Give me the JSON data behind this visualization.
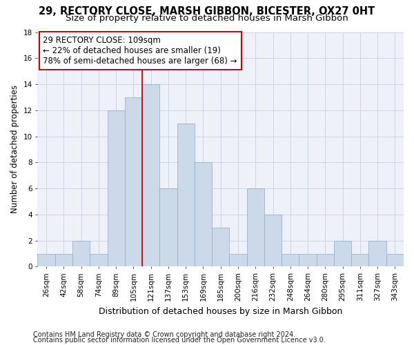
{
  "title1": "29, RECTORY CLOSE, MARSH GIBBON, BICESTER, OX27 0HT",
  "title2": "Size of property relative to detached houses in Marsh Gibbon",
  "xlabel": "Distribution of detached houses by size in Marsh Gibbon",
  "ylabel": "Number of detached properties",
  "categories": [
    "26sqm",
    "42sqm",
    "58sqm",
    "74sqm",
    "89sqm",
    "105sqm",
    "121sqm",
    "137sqm",
    "153sqm",
    "169sqm",
    "185sqm",
    "200sqm",
    "216sqm",
    "232sqm",
    "248sqm",
    "264sqm",
    "280sqm",
    "295sqm",
    "311sqm",
    "327sqm",
    "343sqm"
  ],
  "values": [
    1,
    1,
    2,
    1,
    12,
    13,
    14,
    6,
    11,
    8,
    3,
    1,
    6,
    4,
    1,
    1,
    1,
    2,
    1,
    2,
    1
  ],
  "bar_color": "#ccd9e8",
  "bar_edge_color": "#8aabcc",
  "vline_index": 5.5,
  "vline_color": "#cc0000",
  "annotation_line1": "29 RECTORY CLOSE: 109sqm",
  "annotation_line2": "← 22% of detached houses are smaller (19)",
  "annotation_line3": "78% of semi-detached houses are larger (68) →",
  "annotation_box_color": "white",
  "annotation_box_edge": "#cc0000",
  "ylim": [
    0,
    18
  ],
  "yticks": [
    0,
    2,
    4,
    6,
    8,
    10,
    12,
    14,
    16,
    18
  ],
  "footer1": "Contains HM Land Registry data © Crown copyright and database right 2024.",
  "footer2": "Contains public sector information licensed under the Open Government Licence v3.0.",
  "bg_color": "#eef2f8",
  "grid_color": "#c8d0dc",
  "title1_fontsize": 10.5,
  "title2_fontsize": 9.5,
  "xlabel_fontsize": 9,
  "ylabel_fontsize": 8.5,
  "tick_fontsize": 7.5,
  "footer_fontsize": 7,
  "annotation_fontsize": 8.5
}
